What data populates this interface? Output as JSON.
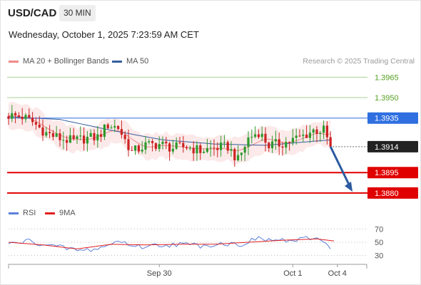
{
  "header": {
    "pair": "USD/CAD",
    "timeframe": "30 MIN",
    "datetime": "Wednesday, October 1, 2025 7:23:59 AM CET"
  },
  "legend": {
    "ma20": {
      "label": "MA 20 + Bollinger Bands",
      "color": "#f08a8a"
    },
    "ma50": {
      "label": "MA 50",
      "color": "#355f9e"
    },
    "credit": "Research © 2025 Trading Central"
  },
  "rsi_legend": {
    "rsi": {
      "label": "RSI",
      "color": "#5b7fdb"
    },
    "ma9": {
      "label": "9MA",
      "color": "#e02020"
    }
  },
  "chart_data": [
    {
      "type": "candlestick",
      "ylim": [
        1.387,
        1.3972
      ],
      "n_bars": 100,
      "x_ticks": [
        {
          "label": "Sep 30",
          "bar": 44
        },
        {
          "label": "Oct 1",
          "bar": 83
        },
        {
          "label": "Oct 4",
          "bar": 96
        }
      ],
      "levels": [
        {
          "price": 1.3965,
          "label": "1.3965",
          "kind": "green"
        },
        {
          "price": 1.395,
          "label": "1.3950",
          "kind": "green"
        },
        {
          "price": 1.3935,
          "label": "1.3935",
          "kind": "blue"
        },
        {
          "price": 1.3914,
          "label": "1.3914",
          "kind": "last"
        },
        {
          "price": 1.3895,
          "label": "1.3895",
          "kind": "red"
        },
        {
          "price": 1.388,
          "label": "1.3880",
          "kind": "red"
        }
      ],
      "close_anchors": [
        [
          0,
          1.3937
        ],
        [
          4,
          1.3936
        ],
        [
          7,
          1.3932
        ],
        [
          11,
          1.3924
        ],
        [
          15,
          1.392
        ],
        [
          19,
          1.3918
        ],
        [
          22,
          1.392
        ],
        [
          26,
          1.3921
        ],
        [
          29,
          1.393
        ],
        [
          32,
          1.3928
        ],
        [
          36,
          1.391
        ],
        [
          40,
          1.3915
        ],
        [
          44,
          1.3916
        ],
        [
          48,
          1.3913
        ],
        [
          52,
          1.3914
        ],
        [
          56,
          1.3911
        ],
        [
          60,
          1.3913
        ],
        [
          64,
          1.3914
        ],
        [
          67,
          1.3904
        ],
        [
          70,
          1.392
        ],
        [
          73,
          1.3925
        ],
        [
          76,
          1.3915
        ],
        [
          79,
          1.3916
        ],
        [
          82,
          1.3918
        ],
        [
          86,
          1.3922
        ],
        [
          89,
          1.3926
        ],
        [
          92,
          1.3926
        ],
        [
          94,
          1.3914
        ]
      ],
      "ma50_anchors": [
        [
          0,
          1.3936
        ],
        [
          15,
          1.3934
        ],
        [
          30,
          1.3926
        ],
        [
          45,
          1.3919
        ],
        [
          60,
          1.3916
        ],
        [
          75,
          1.3915
        ],
        [
          94,
          1.3919
        ]
      ],
      "bb_half_width": 0.0009,
      "projection": {
        "from_bar": 94,
        "from_price": 1.3914,
        "to_bar": 100,
        "to_price": 1.3881
      }
    },
    {
      "type": "line",
      "ylim": [
        20,
        80
      ],
      "y_ticks": [
        70,
        50,
        30
      ],
      "series": [
        {
          "name": "RSI",
          "anchors": [
            [
              0,
              47
            ],
            [
              6,
              52
            ],
            [
              12,
              45
            ],
            [
              18,
              40
            ],
            [
              22,
              37
            ],
            [
              28,
              43
            ],
            [
              32,
              52
            ],
            [
              38,
              43
            ],
            [
              44,
              46
            ],
            [
              50,
              47
            ],
            [
              56,
              45
            ],
            [
              62,
              48
            ],
            [
              68,
              47
            ],
            [
              72,
              55
            ],
            [
              78,
              53
            ],
            [
              84,
              52
            ],
            [
              88,
              56
            ],
            [
              92,
              54
            ],
            [
              94,
              42
            ]
          ]
        },
        {
          "name": "9MA",
          "anchors": [
            [
              0,
              50
            ],
            [
              10,
              46
            ],
            [
              20,
              40
            ],
            [
              30,
              47
            ],
            [
              40,
              46
            ],
            [
              50,
              47
            ],
            [
              60,
              47
            ],
            [
              70,
              50
            ],
            [
              80,
              53
            ],
            [
              90,
              55
            ],
            [
              95,
              52
            ]
          ]
        }
      ]
    }
  ]
}
